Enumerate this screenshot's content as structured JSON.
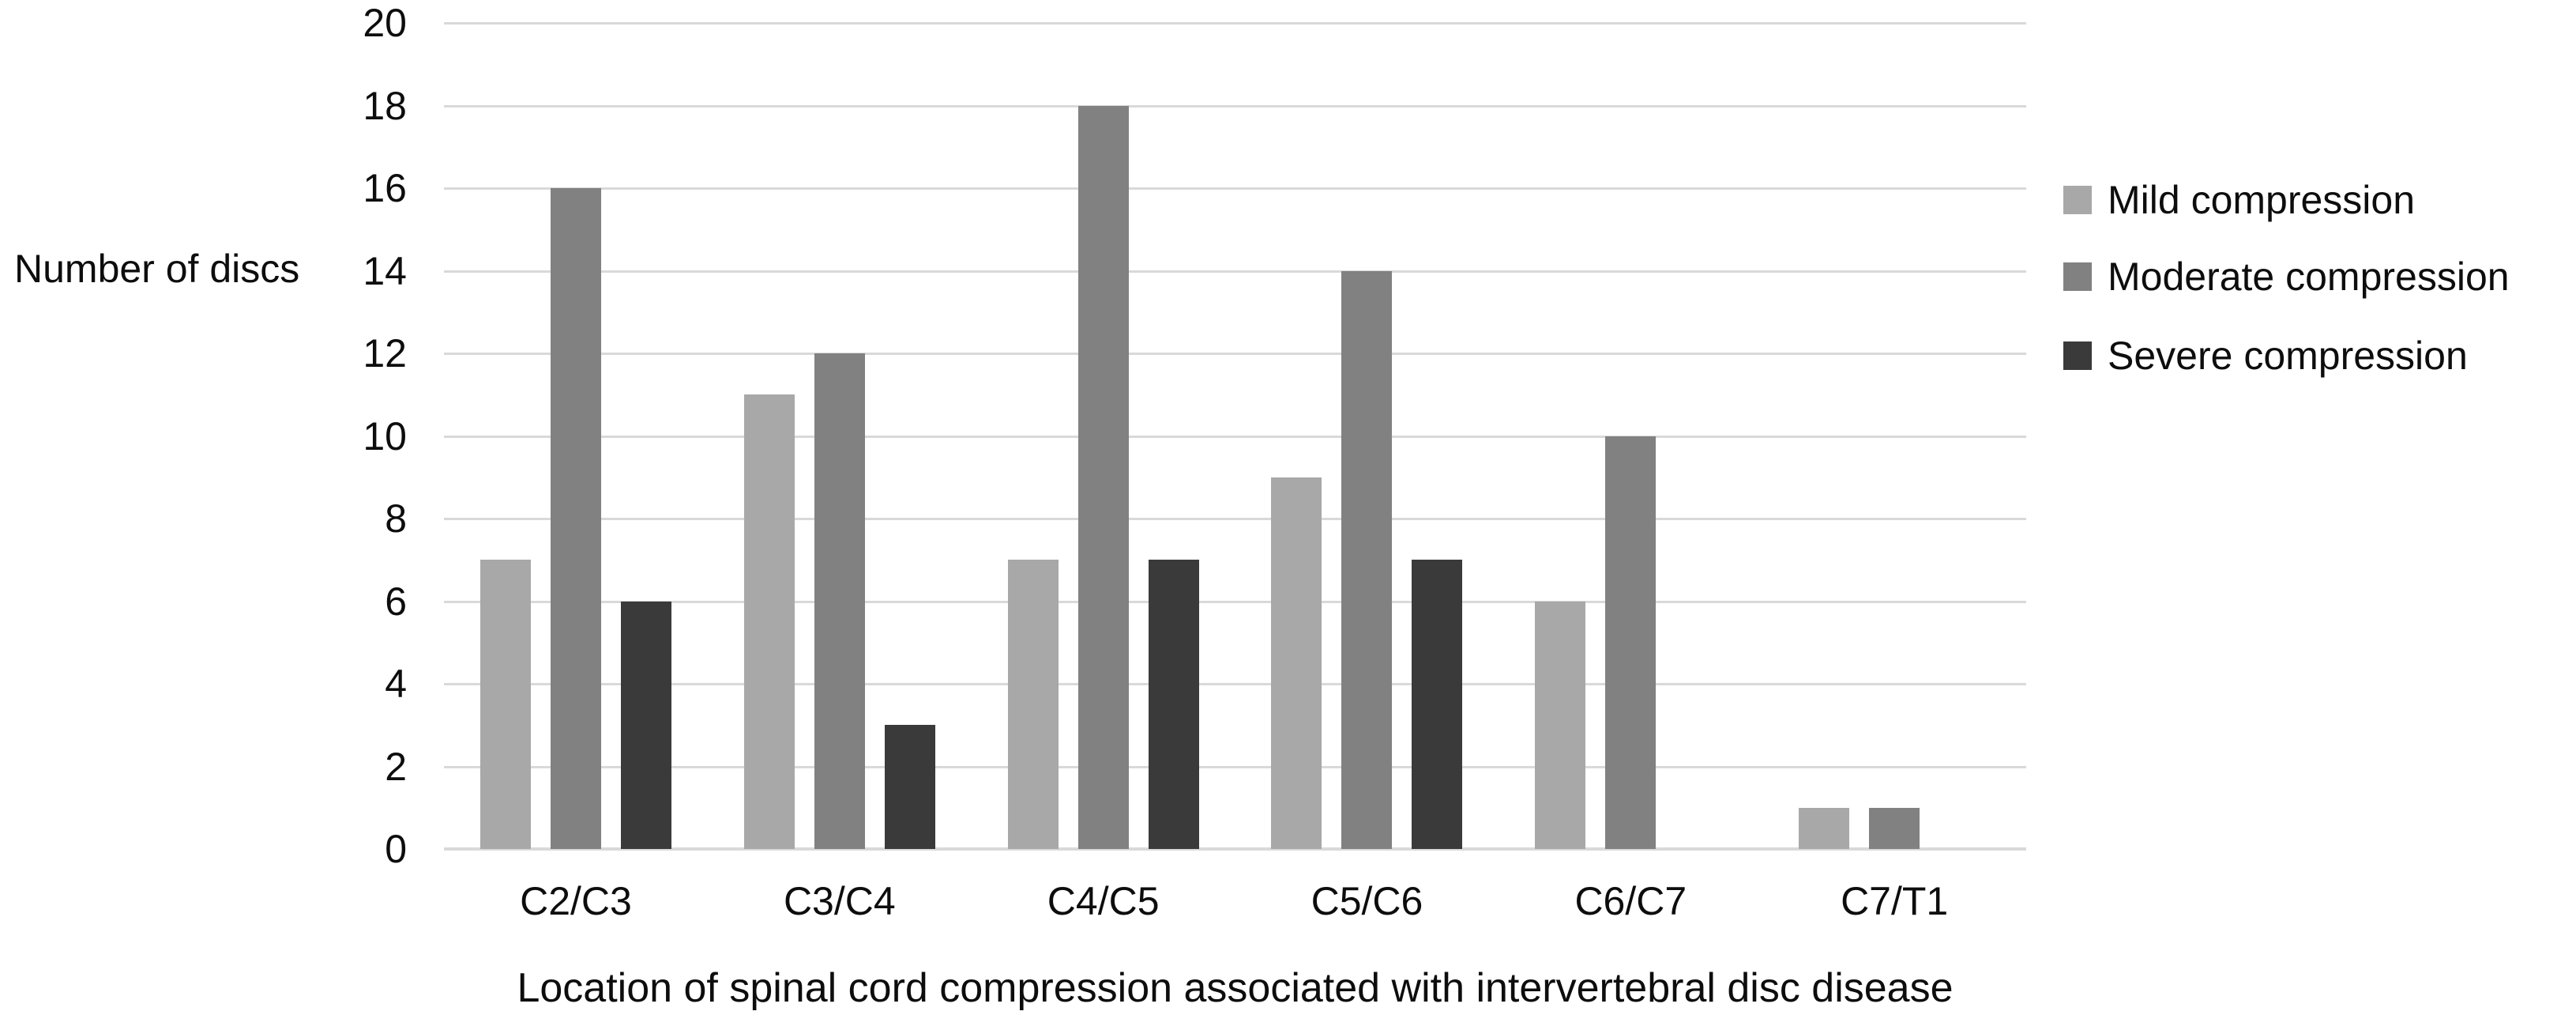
{
  "chart_data": {
    "type": "bar",
    "title": "",
    "xlabel": "Location of spinal cord compression associated with intervertebral disc disease",
    "ylabel": "Number of discs",
    "categories": [
      "C2/C3",
      "C3/C4",
      "C4/C5",
      "C5/C6",
      "C6/C7",
      "C7/T1"
    ],
    "series": [
      {
        "name": "Mild compression",
        "color": "#a8a8a8",
        "values": [
          7,
          11,
          7,
          9,
          6,
          1
        ]
      },
      {
        "name": "Moderate compression",
        "color": "#818181",
        "values": [
          16,
          12,
          18,
          14,
          10,
          1
        ]
      },
      {
        "name": "Severe compression",
        "color": "#3a3a3a",
        "values": [
          6,
          3,
          7,
          7,
          0,
          0
        ]
      }
    ],
    "ylim": [
      0,
      20
    ],
    "ytick_step": 2,
    "yticks": [
      0,
      2,
      4,
      6,
      8,
      10,
      12,
      14,
      16,
      18,
      20
    ],
    "grid": "horizontal",
    "gridline_color": "#d9d9d9",
    "axis_line_color": "#d9d9d9",
    "legend_position": "right",
    "background_color": "#ffffff",
    "text_color": "#0d0d0d"
  }
}
